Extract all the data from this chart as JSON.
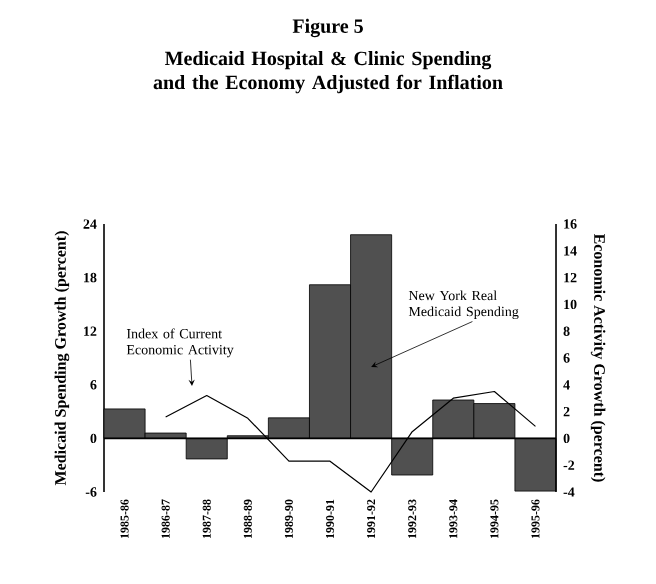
{
  "chart_data": {
    "type": "bar",
    "title": "Figure 5",
    "subtitle": "Medicaid Hospital & Clinic Spending and the Economy Adjusted for Inflation",
    "ylabel": "Medicaid Spending Growth (percent)",
    "y2label": "Economic Activity Growth (percent)",
    "categories": [
      "1985-86",
      "1986-87",
      "1987-88",
      "1988-89",
      "1989-90",
      "1990-91",
      "1991-92",
      "1992-93",
      "1993-94",
      "1994-95",
      "1995-96"
    ],
    "series": [
      {
        "color": "#505050",
        "values": [
          3.3,
          0.6,
          -2.3,
          0.3,
          2.3,
          17.2,
          22.8,
          -4.1,
          4.3,
          3.9,
          -5.9
        ]
      },
      {
        "type": "line",
        "axis": "y2",
        "color": "#000000",
        "values": [
          null,
          1.6,
          3.2,
          1.5,
          -1.7,
          -1.7,
          -4.0,
          0.5,
          3.0,
          3.5,
          0.9
        ]
      }
    ],
    "ylim": [
      -6,
      24
    ],
    "yticks": [
      -6,
      0,
      6,
      12,
      18,
      24
    ],
    "y2lim": [
      -4,
      16
    ],
    "y2ticks": [
      -4,
      -2,
      0,
      2,
      4,
      6,
      8,
      10,
      12,
      14,
      16
    ],
    "annotations": [
      "Index of Current Economic Activity",
      {
        "text": "New York Real Medicaid Spending",
        "x": "1991-92",
        "y": 8
      }
    ]
  }
}
